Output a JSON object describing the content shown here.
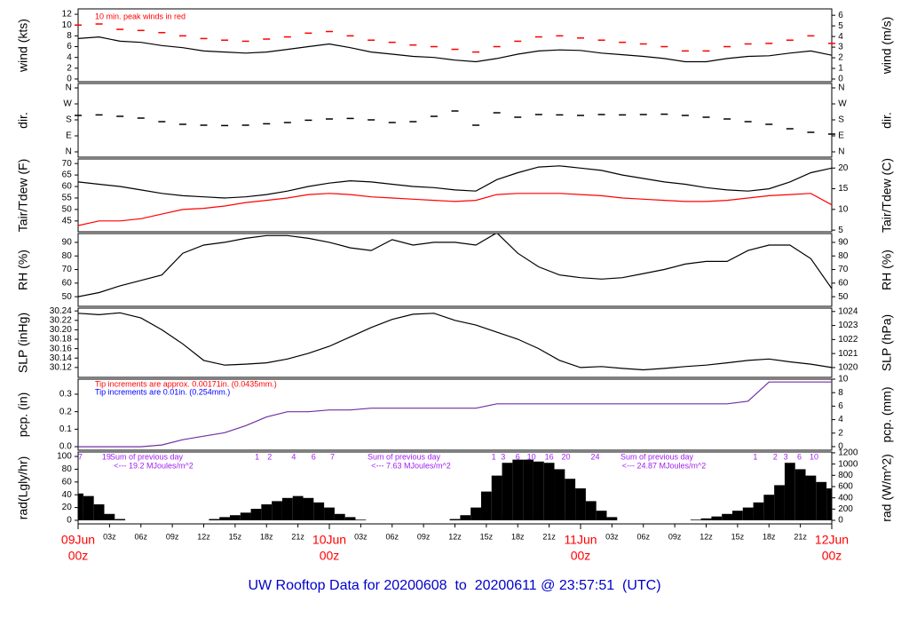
{
  "footer_title": "UW Rooftop Data for 20200608  to  20200611 @ 23:57:51  (UTC)",
  "chart_data": [
    {
      "type": "line",
      "ylabel": "wind (kts)",
      "y2label": "wind (m/s)",
      "annotation": "10 min. peak winds in red",
      "xlim": [
        0,
        72
      ],
      "ylim": [
        -0.5,
        13
      ],
      "yticks": [
        0,
        2,
        4,
        6,
        8,
        10,
        12
      ],
      "y2lim": [
        -0.25,
        6.6
      ],
      "y2ticks": [
        0,
        1,
        2,
        3,
        4,
        5,
        6
      ],
      "x": [
        0,
        2,
        4,
        6,
        8,
        10,
        12,
        14,
        16,
        18,
        20,
        22,
        24,
        26,
        28,
        30,
        32,
        34,
        36,
        38,
        40,
        42,
        44,
        46,
        48,
        50,
        52,
        54,
        56,
        58,
        60,
        62,
        64,
        66,
        68,
        70,
        72
      ],
      "series": [
        {
          "style": "line",
          "color": "#000000",
          "values": [
            7.5,
            7.8,
            7,
            6.8,
            6.2,
            5.8,
            5.2,
            5,
            4.8,
            5,
            5.5,
            6,
            6.5,
            5.8,
            5,
            4.6,
            4.2,
            4,
            3.5,
            3.2,
            3.8,
            4.6,
            5.2,
            5.4,
            5.3,
            4.8,
            4.5,
            4.2,
            3.8,
            3.2,
            3.2,
            3.8,
            4.2,
            4.3,
            4.8,
            5.2,
            4.4
          ]
        },
        {
          "style": "dash",
          "color": "#ff0000",
          "values": [
            10,
            10.2,
            9.2,
            9,
            8.6,
            8,
            7.5,
            7.2,
            7,
            7.4,
            7.8,
            8.5,
            8.8,
            8,
            7.2,
            6.8,
            6.3,
            6,
            5.5,
            5,
            6,
            7,
            7.8,
            8,
            7.6,
            7.2,
            6.8,
            6.5,
            6,
            5.2,
            5.2,
            6,
            6.5,
            6.6,
            7.2,
            8,
            6.6
          ]
        }
      ]
    },
    {
      "type": "scatter",
      "ylabel": "dir.",
      "y2label": "dir.",
      "xlim": [
        0,
        72
      ],
      "ylim": [
        -30,
        385
      ],
      "yticks": [
        {
          "value": 0,
          "label": "N"
        },
        {
          "value": 90,
          "label": "E"
        },
        {
          "value": 180,
          "label": "S"
        },
        {
          "value": 270,
          "label": "W"
        },
        {
          "value": 360,
          "label": "N"
        }
      ],
      "y2lim": [
        -30,
        385
      ],
      "y2ticks": [
        {
          "value": 0,
          "label": "N"
        },
        {
          "value": 90,
          "label": "E"
        },
        {
          "value": 180,
          "label": "S"
        },
        {
          "value": 270,
          "label": "W"
        },
        {
          "value": 360,
          "label": "N"
        }
      ],
      "x": [
        0,
        2,
        4,
        6,
        8,
        10,
        12,
        14,
        16,
        18,
        20,
        22,
        24,
        26,
        28,
        30,
        32,
        34,
        36,
        38,
        40,
        42,
        44,
        46,
        48,
        50,
        52,
        54,
        56,
        58,
        60,
        62,
        64,
        66,
        68,
        70,
        72
      ],
      "series": [
        {
          "style": "dash",
          "color": "#000000",
          "values": [
            205,
            208,
            200,
            190,
            170,
            155,
            150,
            148,
            150,
            158,
            165,
            178,
            185,
            188,
            180,
            165,
            170,
            200,
            230,
            150,
            220,
            195,
            210,
            208,
            205,
            210,
            208,
            210,
            212,
            205,
            195,
            185,
            170,
            155,
            130,
            110,
            100
          ]
        }
      ]
    },
    {
      "type": "line",
      "ylabel": "Tair/Tdew (F)",
      "y2label": "Tair/Tdew (C)",
      "xlim": [
        0,
        72
      ],
      "ylim": [
        40.3,
        72
      ],
      "yticks": [
        45,
        50,
        55,
        60,
        65,
        70
      ],
      "y2lim": [
        4.6,
        22.2
      ],
      "y2ticks": [
        5,
        10,
        15,
        20
      ],
      "x": [
        0,
        2,
        4,
        6,
        8,
        10,
        12,
        14,
        16,
        18,
        20,
        22,
        24,
        26,
        28,
        30,
        32,
        34,
        36,
        38,
        40,
        42,
        44,
        46,
        48,
        50,
        52,
        54,
        56,
        58,
        60,
        62,
        64,
        66,
        68,
        70,
        72
      ],
      "series": [
        {
          "style": "line",
          "color": "#000000",
          "values": [
            62,
            61,
            60,
            58.5,
            57,
            56,
            55.5,
            55,
            55.5,
            56.5,
            58,
            60,
            61.5,
            62.5,
            62,
            61,
            60,
            59.5,
            58.5,
            58,
            63,
            66,
            68.5,
            69,
            68,
            67,
            65,
            63.5,
            62,
            61,
            59.5,
            58.5,
            58,
            59,
            62,
            66,
            68
          ]
        },
        {
          "style": "line",
          "color": "#ff0000",
          "values": [
            43,
            45,
            45,
            46,
            48,
            50,
            50.5,
            51.5,
            53,
            54,
            55,
            56.5,
            57,
            56.5,
            55.5,
            55,
            54.5,
            54,
            53.5,
            54,
            56.5,
            57,
            57,
            57,
            56.5,
            56,
            55,
            54.5,
            54,
            53.5,
            53.5,
            54,
            55,
            56,
            56.5,
            57,
            52
          ]
        }
      ]
    },
    {
      "type": "line",
      "ylabel": "RH (%)",
      "y2label": "RH (%)",
      "xlim": [
        0,
        72
      ],
      "ylim": [
        42.9,
        96.5
      ],
      "yticks": [
        50,
        60,
        70,
        80,
        90
      ],
      "y2lim": [
        42.9,
        96.5
      ],
      "y2ticks": [
        50,
        60,
        70,
        80,
        90
      ],
      "x": [
        0,
        2,
        4,
        6,
        8,
        10,
        12,
        14,
        16,
        18,
        20,
        22,
        24,
        26,
        28,
        30,
        32,
        34,
        36,
        38,
        40,
        42,
        44,
        46,
        48,
        50,
        52,
        54,
        56,
        58,
        60,
        62,
        64,
        66,
        68,
        70,
        72
      ],
      "series": [
        {
          "style": "line",
          "color": "#000000",
          "values": [
            50,
            53,
            58,
            62,
            66,
            82,
            88,
            90,
            93,
            95,
            95,
            93,
            90,
            86,
            84,
            92,
            88,
            90,
            90,
            88,
            97,
            82,
            72,
            66,
            64,
            63,
            64,
            67,
            70,
            74,
            76,
            76,
            84,
            88,
            88,
            78,
            56
          ]
        }
      ]
    },
    {
      "type": "line",
      "ylabel": "SLP (inHg)",
      "y2label": "SLP (hPa)",
      "xlim": [
        0,
        72
      ],
      "ylim": [
        30.099,
        30.246
      ],
      "yticks": [
        30.12,
        30.14,
        30.16,
        30.18,
        {
          "value": 30.2,
          "label": "30.20"
        },
        30.22,
        30.24
      ],
      "y2lim": [
        1019.3,
        1024.24
      ],
      "y2ticks": [
        1020,
        1021,
        1022,
        1023,
        1024
      ],
      "x": [
        0,
        2,
        4,
        6,
        8,
        10,
        12,
        14,
        16,
        18,
        20,
        22,
        24,
        26,
        28,
        30,
        32,
        34,
        36,
        38,
        40,
        42,
        44,
        46,
        48,
        50,
        52,
        54,
        56,
        58,
        60,
        62,
        64,
        66,
        68,
        70,
        72
      ],
      "series": [
        {
          "style": "line",
          "color": "#000000",
          "values": [
            30.235,
            30.232,
            30.236,
            30.225,
            30.2,
            30.17,
            30.135,
            30.125,
            30.127,
            30.13,
            30.138,
            30.15,
            30.165,
            30.185,
            30.205,
            30.222,
            30.233,
            30.235,
            30.22,
            30.21,
            30.195,
            30.18,
            30.16,
            30.135,
            30.12,
            30.122,
            30.118,
            30.115,
            30.118,
            30.122,
            30.125,
            30.13,
            30.135,
            30.138,
            30.132,
            30.127,
            30.12
          ]
        }
      ]
    },
    {
      "type": "line",
      "ylabel": "pcp. (in)",
      "y2label": "pcp. (mm)",
      "annotations": [
        {
          "text": "Tip increments are approx. 0.00171in. (0.0435mm.)",
          "color": "#ff0000"
        },
        {
          "text": "Tip increments are 0.01in. (0.254mm.)",
          "color": "#0000ff"
        }
      ],
      "xlim": [
        0,
        72
      ],
      "ylim": [
        -0.02,
        0.386
      ],
      "yticks": [
        {
          "value": 0,
          "label": "0.0"
        },
        0.1,
        0.2,
        0.3
      ],
      "y2lim": [
        -0.53,
        10
      ],
      "y2ticks": [
        0,
        2,
        4,
        6,
        8,
        10
      ],
      "x": [
        0,
        2,
        4,
        6,
        8,
        10,
        12,
        14,
        16,
        18,
        20,
        22,
        24,
        26,
        28,
        30,
        32,
        34,
        36,
        38,
        40,
        42,
        44,
        46,
        48,
        50,
        52,
        54,
        56,
        58,
        60,
        62,
        64,
        66,
        68,
        70,
        72
      ],
      "series": [
        {
          "style": "line",
          "color": "#7030a0",
          "values": [
            0,
            0,
            0,
            0,
            0.01,
            0.04,
            0.06,
            0.08,
            0.12,
            0.17,
            0.2,
            0.2,
            0.21,
            0.21,
            0.22,
            0.22,
            0.22,
            0.22,
            0.22,
            0.22,
            0.245,
            0.245,
            0.245,
            0.245,
            0.245,
            0.245,
            0.245,
            0.245,
            0.245,
            0.245,
            0.245,
            0.245,
            0.26,
            0.37,
            0.37,
            0.37,
            0.37
          ]
        }
      ]
    },
    {
      "type": "bar",
      "ylabel": "rad(Lgly/hr)",
      "y2label": "rad (W/m^2)",
      "xlim": [
        0,
        72
      ],
      "ylim": [
        -5.6,
        107
      ],
      "yticks": [
        0,
        20,
        40,
        60,
        80,
        100
      ],
      "y2lim": [
        -63,
        1215
      ],
      "y2ticks": [
        0,
        200,
        400,
        600,
        800,
        1000,
        1200
      ],
      "hour_marks": [
        {
          "x": 0.2,
          "label": "7"
        },
        {
          "x": 2.7,
          "label": "19"
        },
        {
          "x": 17.1,
          "label": "1"
        },
        {
          "x": 18.3,
          "label": "2"
        },
        {
          "x": 20.6,
          "label": "4"
        },
        {
          "x": 22.5,
          "label": "6"
        },
        {
          "x": 24.3,
          "label": "7"
        },
        {
          "x": 39.7,
          "label": "1"
        },
        {
          "x": 40.6,
          "label": "3"
        },
        {
          "x": 42,
          "label": "6"
        },
        {
          "x": 43.3,
          "label": "10"
        },
        {
          "x": 45,
          "label": "16"
        },
        {
          "x": 46.6,
          "label": "20"
        },
        {
          "x": 49.4,
          "label": "24"
        },
        {
          "x": 64.7,
          "label": "1"
        },
        {
          "x": 66.6,
          "label": "2"
        },
        {
          "x": 67.6,
          "label": "3"
        },
        {
          "x": 68.9,
          "label": "6"
        },
        {
          "x": 70.3,
          "label": "10"
        }
      ],
      "daily_sums": [
        {
          "label": "Sum of previous day",
          "sum": "<--- 19.2 MJoules/m^2"
        },
        {
          "label": "Sum of previous day",
          "sum": "<--- 7.63 MJoules/m^2"
        },
        {
          "label": "Sum of previous day",
          "sum": "<--- 24.87 MJoules/m^2"
        }
      ],
      "xticks": [
        {
          "value": 3,
          "label": "03z"
        },
        {
          "value": 6,
          "label": "06z"
        },
        {
          "value": 9,
          "label": "09z"
        },
        {
          "value": 12,
          "label": "12z"
        },
        {
          "value": 15,
          "label": "15z"
        },
        {
          "value": 18,
          "label": "18z"
        },
        {
          "value": 21,
          "label": "21z"
        },
        {
          "value": 27,
          "label": "03z"
        },
        {
          "value": 30,
          "label": "06z"
        },
        {
          "value": 33,
          "label": "09z"
        },
        {
          "value": 36,
          "label": "12z"
        },
        {
          "value": 39,
          "label": "15z"
        },
        {
          "value": 42,
          "label": "18z"
        },
        {
          "value": 45,
          "label": "21z"
        },
        {
          "value": 51,
          "label": "03z"
        },
        {
          "value": 54,
          "label": "06z"
        },
        {
          "value": 57,
          "label": "09z"
        },
        {
          "value": 60,
          "label": "12z"
        },
        {
          "value": 63,
          "label": "15z"
        },
        {
          "value": 66,
          "label": "18z"
        },
        {
          "value": 69,
          "label": "21z"
        }
      ],
      "date_ticks": [
        {
          "value": 0,
          "label": "09Jun",
          "sublabel": "00z"
        },
        {
          "value": 24,
          "label": "10Jun",
          "sublabel": "00z"
        },
        {
          "value": 48,
          "label": "11Jun",
          "sublabel": "00z"
        },
        {
          "value": 72,
          "label": "12Jun",
          "sublabel": "00z"
        }
      ],
      "x": [
        0,
        1,
        2,
        3,
        4,
        5,
        6,
        7,
        8,
        9,
        10,
        11,
        12,
        13,
        14,
        15,
        16,
        17,
        18,
        19,
        20,
        21,
        22,
        23,
        24,
        25,
        26,
        27,
        28,
        29,
        30,
        31,
        32,
        33,
        34,
        35,
        36,
        37,
        38,
        39,
        40,
        41,
        42,
        43,
        44,
        45,
        46,
        47,
        48,
        49,
        50,
        51,
        52,
        53,
        54,
        55,
        56,
        57,
        58,
        59,
        60,
        61,
        62,
        63,
        64,
        65,
        66,
        67,
        68,
        69,
        70,
        71,
        72
      ],
      "series": [
        {
          "color": "#000000",
          "values": [
            42,
            38,
            25,
            10,
            2,
            0,
            0,
            0,
            0,
            0,
            0,
            0,
            0,
            2,
            5,
            8,
            12,
            18,
            25,
            30,
            35,
            38,
            35,
            28,
            20,
            10,
            5,
            1,
            0,
            0,
            0,
            0,
            0,
            0,
            0,
            0,
            2,
            8,
            20,
            45,
            70,
            90,
            95,
            95,
            92,
            90,
            80,
            65,
            50,
            30,
            15,
            5,
            0,
            0,
            0,
            0,
            0,
            0,
            0,
            1,
            3,
            6,
            10,
            15,
            20,
            28,
            40,
            55,
            90,
            80,
            70,
            60,
            50
          ]
        }
      ]
    }
  ]
}
